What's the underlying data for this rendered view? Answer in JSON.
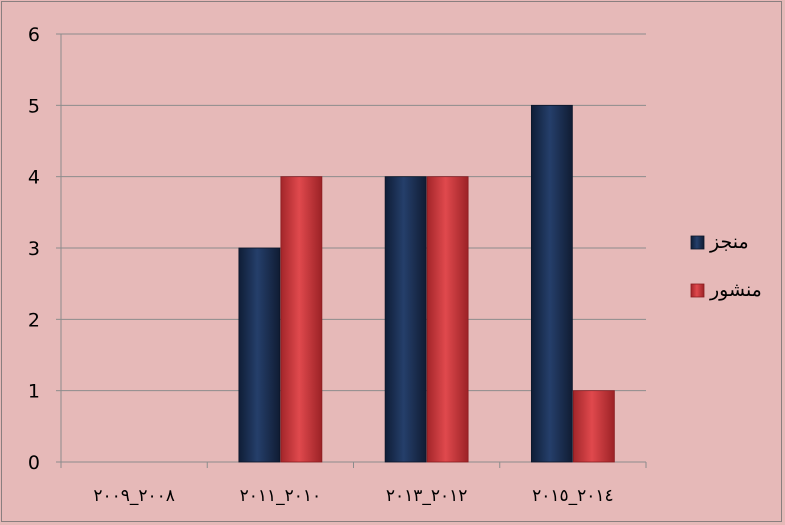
{
  "chart_data": {
    "type": "bar",
    "categories": [
      "٢٠٠٨_٢٠٠٩",
      "٢٠١٠_٢٠١١",
      "٢٠١٢_٢٠١٣",
      "٢٠١٤_٢٠١٥"
    ],
    "series": [
      {
        "name": "منجز",
        "values": [
          0,
          3,
          4,
          5
        ],
        "color": "#1f3763"
      },
      {
        "name": "منشور",
        "values": [
          0,
          4,
          4,
          1
        ],
        "color": "#c8363a"
      }
    ],
    "title": "",
    "xlabel": "",
    "ylabel": "",
    "ylim": [
      0,
      6
    ],
    "yticks": [
      0,
      1,
      2,
      3,
      4,
      5,
      6
    ],
    "grid": true,
    "legend": "right"
  }
}
